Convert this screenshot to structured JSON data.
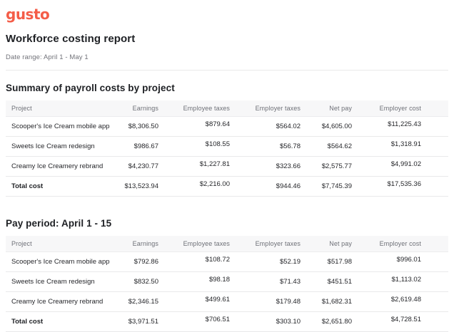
{
  "brand": {
    "logo_text": "gusto",
    "logo_color": "#F45D48"
  },
  "page": {
    "title": "Workforce costing report",
    "date_range": "Date range: April 1 - May 1"
  },
  "sections": [
    {
      "heading": "Summary of payroll costs by project",
      "table": {
        "columns": [
          "Project",
          "Earnings",
          "Employee taxes",
          "Employer taxes",
          "Net pay",
          "Employer cost"
        ],
        "rows": [
          [
            "Scooper's Ice Cream mobile app",
            "$8,306.50",
            "$879.64",
            "$564.02",
            "$4,605.00",
            "$11,225.43"
          ],
          [
            "Sweets Ice Cream redesign",
            "$986.67",
            "$108.55",
            "$56.78",
            "$564.62",
            "$1,318.91"
          ],
          [
            "Creamy Ice Creamery rebrand",
            "$4,230.77",
            "$1,227.81",
            "$323.66",
            "$2,575.77",
            "$4,991.02"
          ]
        ],
        "total": [
          "Total cost",
          "$13,523.94",
          "$2,216.00",
          "$944.46",
          "$7,745.39",
          "$17,535.36"
        ]
      }
    },
    {
      "heading": "Pay period: April 1 - 15",
      "table": {
        "columns": [
          "Project",
          "Earnings",
          "Employee taxes",
          "Employer taxes",
          "Net pay",
          "Employer cost"
        ],
        "rows": [
          [
            "Scooper's Ice Cream mobile app",
            "$792.86",
            "$108.72",
            "$52.19",
            "$517.98",
            "$996.01"
          ],
          [
            "Sweets Ice Cream redesign",
            "$832.50",
            "$98.18",
            "$71.43",
            "$451.51",
            "$1,113.02"
          ],
          [
            "Creamy Ice Creamery rebrand",
            "$2,346.15",
            "$499.61",
            "$179.48",
            "$1,682.31",
            "$2,619.48"
          ]
        ],
        "total": [
          "Total cost",
          "$3,971.51",
          "$706.51",
          "$303.10",
          "$2,651.80",
          "$4,728.51"
        ]
      }
    }
  ]
}
